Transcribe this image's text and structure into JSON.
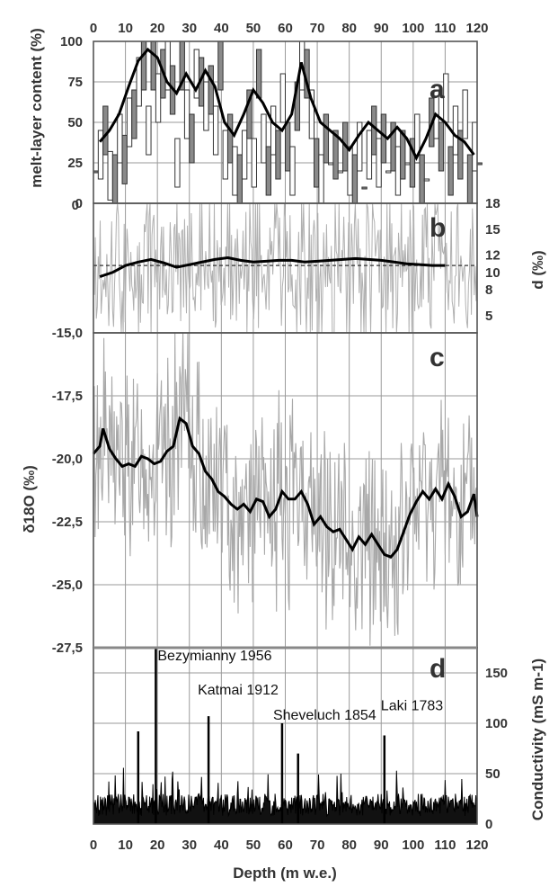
{
  "chart_data": [
    {
      "id": "a",
      "type": "line",
      "panel_label": "a",
      "ylabel": "melt-layer content (%)",
      "ylim": [
        0,
        100
      ],
      "yticks": [
        "0",
        "25",
        "50",
        "75",
        "100"
      ],
      "x_top_ticks": [
        "0",
        "10",
        "20",
        "30",
        "40",
        "50",
        "60",
        "70",
        "80",
        "90",
        "100",
        "110",
        "120"
      ],
      "xlim": [
        0,
        120
      ],
      "grid": true,
      "series": [
        {
          "role": "annual",
          "x": [
            0,
            1.5,
            3,
            4.5,
            6,
            7.5,
            9,
            10.5,
            12,
            13.5,
            15,
            16.5,
            18,
            19.5,
            21,
            22.5,
            24,
            25.5,
            27,
            28.5,
            30,
            31.5,
            33,
            34.5,
            36,
            37.5,
            39,
            40.5,
            42,
            43.5,
            45,
            46.5,
            48,
            49.5,
            51,
            52.5,
            54,
            55.5,
            57,
            58.5,
            60,
            61.5,
            63,
            64.5,
            66,
            67.5,
            69,
            70.5,
            72,
            73.5,
            75,
            76.5,
            78,
            79.5,
            81,
            82.5,
            84,
            85.5,
            87,
            88.5,
            90,
            91.5,
            93,
            94.5,
            96,
            97.5,
            99,
            100.5,
            102,
            103.5,
            105,
            106.5,
            108,
            109.5,
            111,
            112.5,
            114,
            115.5,
            117,
            118.5,
            120
          ],
          "y": [
            20,
            45,
            60,
            32,
            30,
            55,
            42,
            65,
            70,
            90,
            100,
            60,
            100,
            80,
            95,
            100,
            85,
            40,
            100,
            70,
            55,
            95,
            90,
            75,
            85,
            60,
            100,
            45,
            55,
            35,
            30,
            45,
            70,
            40,
            95,
            55,
            35,
            60,
            45,
            80,
            50,
            35,
            75,
            100,
            95,
            70,
            40,
            30,
            55,
            25,
            45,
            20,
            50,
            35,
            30,
            50,
            10,
            45,
            60,
            40,
            55,
            20,
            50,
            35,
            45,
            25,
            40,
            55,
            30,
            15,
            65,
            70,
            50,
            80,
            35,
            60,
            45,
            70,
            30,
            50,
            25
          ]
        },
        {
          "role": "running-mean",
          "x": [
            2,
            5,
            8,
            11,
            14,
            17,
            20,
            23,
            26,
            29,
            32,
            35,
            38,
            41,
            44,
            47,
            50,
            53,
            56,
            59,
            62,
            65,
            68,
            71,
            74,
            77,
            80,
            83,
            86,
            89,
            92,
            95,
            98,
            101,
            104,
            107,
            110,
            113,
            116,
            119
          ],
          "y": [
            38,
            45,
            55,
            72,
            88,
            95,
            90,
            75,
            68,
            80,
            70,
            82,
            72,
            50,
            42,
            55,
            70,
            62,
            50,
            45,
            55,
            87,
            65,
            50,
            45,
            40,
            33,
            42,
            50,
            45,
            40,
            47,
            40,
            28,
            40,
            55,
            50,
            42,
            38,
            30
          ]
        }
      ]
    },
    {
      "id": "b",
      "type": "line",
      "panel_label": "b",
      "ylabel": "d (‰)",
      "ylim": [
        3,
        18
      ],
      "yticks_right": [
        "5",
        "8",
        "10",
        "12",
        "15",
        "18"
      ],
      "left_tick_labels": [
        "0",
        "-15,0"
      ],
      "reference_line": 10.8,
      "xlim": [
        0,
        120
      ],
      "grid": true,
      "series": [
        {
          "role": "running-mean",
          "x": [
            2,
            6,
            10,
            14,
            18,
            22,
            26,
            30,
            34,
            38,
            42,
            46,
            50,
            54,
            58,
            62,
            66,
            70,
            74,
            78,
            82,
            86,
            90,
            94,
            98,
            102,
            106,
            110
          ],
          "y": [
            9.5,
            10.0,
            10.8,
            11.2,
            11.5,
            11.1,
            10.6,
            10.9,
            11.2,
            11.5,
            11.7,
            11.4,
            11.2,
            11.3,
            11.4,
            11.4,
            11.2,
            11.3,
            11.4,
            11.5,
            11.6,
            11.5,
            11.4,
            11.2,
            11.0,
            10.9,
            10.8,
            10.8
          ]
        }
      ]
    },
    {
      "id": "c",
      "type": "line",
      "panel_label": "c",
      "ylabel": "δ18O (‰)",
      "ylim": [
        -27.5,
        -15
      ],
      "yticks": [
        "-27,5",
        "-25,0",
        "-22,5",
        "-20,0",
        "-17,5",
        "-15,0"
      ],
      "xlim": [
        0,
        120
      ],
      "grid": true,
      "series": [
        {
          "role": "running-mean",
          "x": [
            0,
            2,
            3,
            5,
            7,
            9,
            11,
            13,
            15,
            17,
            19,
            21,
            23,
            25,
            27,
            29,
            31,
            33,
            35,
            37,
            39,
            41,
            43,
            45,
            47,
            49,
            51,
            53,
            55,
            57,
            59,
            61,
            63,
            65,
            67,
            69,
            71,
            73,
            75,
            77,
            79,
            81,
            83,
            85,
            87,
            89,
            91,
            93,
            95,
            97,
            99,
            101,
            103,
            105,
            107,
            109,
            111,
            113,
            115,
            117,
            119,
            120
          ],
          "y": [
            -19.8,
            -19.5,
            -18.8,
            -19.6,
            -20.0,
            -20.3,
            -20.2,
            -20.3,
            -19.9,
            -20.0,
            -20.2,
            -20.1,
            -19.7,
            -19.5,
            -18.4,
            -18.6,
            -19.5,
            -19.8,
            -20.5,
            -20.8,
            -21.3,
            -21.5,
            -21.8,
            -22.0,
            -21.8,
            -22.1,
            -21.6,
            -21.7,
            -22.3,
            -22.0,
            -21.3,
            -21.6,
            -21.6,
            -21.3,
            -21.8,
            -22.6,
            -22.3,
            -22.7,
            -22.9,
            -22.8,
            -23.2,
            -23.6,
            -23.1,
            -23.4,
            -23.0,
            -23.4,
            -23.8,
            -23.9,
            -23.6,
            -22.9,
            -22.2,
            -21.7,
            -21.3,
            -21.6,
            -21.2,
            -21.6,
            -21.0,
            -21.5,
            -22.3,
            -22.1,
            -21.4,
            -22.3
          ]
        }
      ]
    },
    {
      "id": "d",
      "type": "line",
      "panel_label": "d",
      "ylabel": "Conductivity (mS m-1)",
      "ylim": [
        0,
        175
      ],
      "yticks_right": [
        "0",
        "50",
        "100",
        "150"
      ],
      "xlabel": "Depth (m w.e.)",
      "xticks": [
        "0",
        "10",
        "20",
        "30",
        "40",
        "50",
        "60",
        "70",
        "80",
        "90",
        "100",
        "110",
        "120"
      ],
      "xlim": [
        0,
        120
      ],
      "grid": true,
      "annotations": [
        {
          "label": "Bezymianny 1956",
          "x": 19.5,
          "value": 175
        },
        {
          "label": "Katmai 1912",
          "x": 36,
          "value": 107
        },
        {
          "label": "Sheveluch 1854",
          "x": 59,
          "value": 100
        },
        {
          "label": "Laki 1783",
          "x": 91,
          "value": 88
        }
      ],
      "series": [
        {
          "role": "peaks",
          "x": [
            14,
            19.5,
            36,
            59,
            64,
            91
          ],
          "y": [
            92,
            175,
            107,
            100,
            70,
            88
          ]
        }
      ]
    }
  ]
}
